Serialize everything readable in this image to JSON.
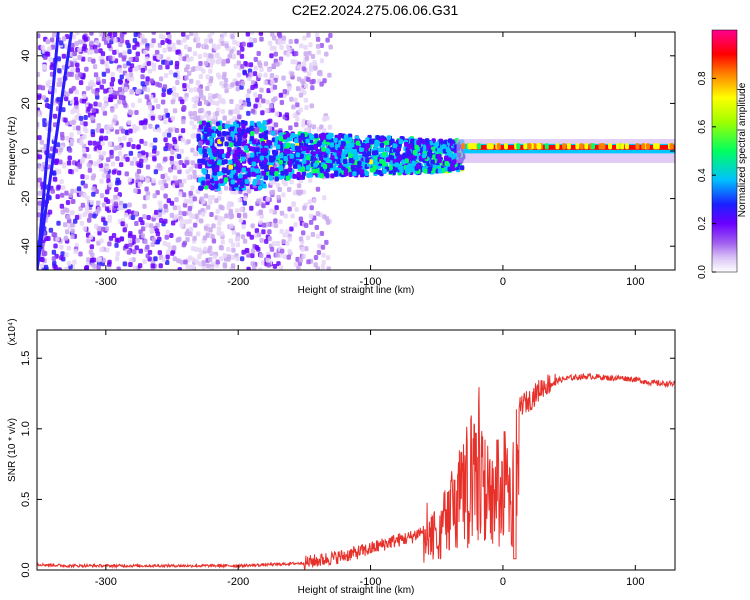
{
  "title": "C2E2.2024.275.06.06.G31",
  "chart_data": [
    {
      "type": "heatmap",
      "xlabel": "Height of straight line (km)",
      "ylabel": "Frequency (Hz)",
      "xlim": [
        -352,
        130
      ],
      "ylim": [
        -50,
        50
      ],
      "xticks": [
        -300,
        -200,
        -100,
        0,
        100
      ],
      "yticks": [
        -40,
        -20,
        0,
        20,
        40
      ],
      "colorbar": {
        "label": "Normalized spectral amplitude",
        "range": [
          0.0,
          1.0
        ],
        "ticks": [
          "0.0",
          "0.2",
          "0.4",
          "0.6",
          "0.8"
        ],
        "tick_values": [
          0.0,
          0.2,
          0.4,
          0.6,
          0.8
        ],
        "colors": [
          "#ffffff",
          "#c9a8f0",
          "#7a00ff",
          "#2a1bff",
          "#00c8ff",
          "#00ff40",
          "#ffff00",
          "#ff8000",
          "#ff0000",
          "#ff0090"
        ]
      },
      "grid": false
    },
    {
      "type": "line",
      "xlabel": "Height of straight line (km)",
      "ylabel": "SNR (10 * v/v)",
      "yscale_label": "(x10⁴)",
      "xlim": [
        -352,
        130
      ],
      "ylim": [
        0,
        1.7
      ],
      "xticks": [
        -300,
        -200,
        -100,
        0,
        100
      ],
      "yticks": [
        "0.0",
        "0.5",
        "1.0",
        "1.5"
      ],
      "ytick_values": [
        0.0,
        0.5,
        1.0,
        1.5
      ],
      "color": "#e8302a",
      "series": [
        {
          "x": [
            -352,
            -330,
            -300,
            -250,
            -200,
            -170,
            -150,
            -120,
            -100,
            -85,
            -70,
            -60,
            -50,
            -45,
            -40,
            -35,
            -30,
            -25,
            -22,
            -20,
            -18,
            -16,
            -14,
            -12,
            -10,
            -8,
            -5,
            -2,
            0,
            2,
            5,
            8,
            10,
            12,
            15,
            20,
            25,
            30,
            40,
            50,
            60,
            70,
            80,
            90,
            100,
            110,
            120,
            130
          ],
          "values": [
            0.04,
            0.03,
            0.03,
            0.03,
            0.03,
            0.04,
            0.05,
            0.1,
            0.15,
            0.2,
            0.23,
            0.28,
            0.45,
            0.55,
            0.7,
            0.8,
            0.95,
            1.05,
            1.2,
            1.25,
            1.3,
            1.25,
            1.2,
            1.0,
            0.95,
            0.9,
            0.92,
            1.05,
            1.0,
            1.0,
            1.05,
            0.95,
            1.1,
            1.15,
            1.18,
            1.2,
            1.25,
            1.3,
            1.34,
            1.36,
            1.37,
            1.37,
            1.36,
            1.36,
            1.35,
            1.33,
            1.32,
            1.32
          ]
        }
      ]
    }
  ]
}
